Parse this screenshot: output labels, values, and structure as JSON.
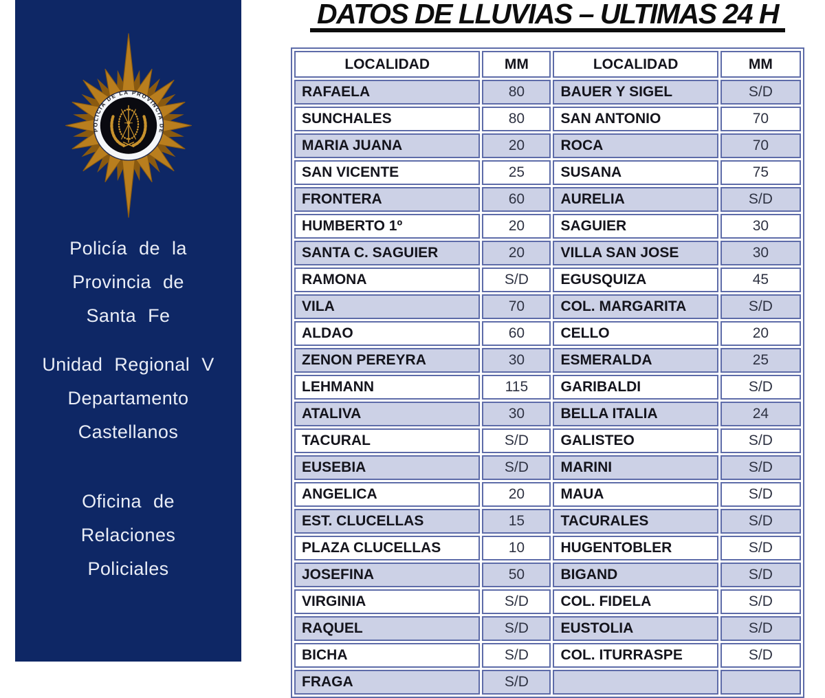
{
  "title": "DATOS DE LLUVIAS – ULTIMAS 24 H",
  "sidebar": {
    "emblem_text": "POLICIA DE LA PROVINCIA DE SANTA FE",
    "org_lines": [
      "Policía de la",
      "Provincia de",
      "Santa Fe"
    ],
    "unit_lines": [
      "Unidad Regional V",
      "Departamento",
      "Castellanos"
    ],
    "office_lines": [
      "Oficina de",
      "Relaciones",
      "Policiales"
    ]
  },
  "table": {
    "headers": [
      "LOCALIDAD",
      "MM",
      "LOCALIDAD",
      "MM"
    ],
    "rows": [
      [
        "RAFAELA",
        "80",
        "BAUER Y SIGEL",
        "S/D"
      ],
      [
        "SUNCHALES",
        "80",
        "SAN ANTONIO",
        "70"
      ],
      [
        "MARIA JUANA",
        "20",
        "ROCA",
        "70"
      ],
      [
        "SAN VICENTE",
        "25",
        "SUSANA",
        "75"
      ],
      [
        "FRONTERA",
        "60",
        "AURELIA",
        "S/D"
      ],
      [
        "HUMBERTO 1º",
        "20",
        "SAGUIER",
        "30"
      ],
      [
        "SANTA C. SAGUIER",
        "20",
        "VILLA SAN JOSE",
        "30"
      ],
      [
        "RAMONA",
        "S/D",
        "EGUSQUIZA",
        "45"
      ],
      [
        "VILA",
        "70",
        "COL. MARGARITA",
        "S/D"
      ],
      [
        "ALDAO",
        "60",
        "CELLO",
        "20"
      ],
      [
        "ZENON PEREYRA",
        "30",
        "ESMERALDA",
        "25"
      ],
      [
        "LEHMANN",
        "115",
        "GARIBALDI",
        "S/D"
      ],
      [
        "ATALIVA",
        "30",
        "BELLA ITALIA",
        "24"
      ],
      [
        "TACURAL",
        "S/D",
        "GALISTEO",
        "S/D"
      ],
      [
        "EUSEBIA",
        "S/D",
        "MARINI",
        "S/D"
      ],
      [
        "ANGELICA",
        "20",
        "MAUA",
        "S/D"
      ],
      [
        "EST. CLUCELLAS",
        "15",
        "TACURALES",
        "S/D"
      ],
      [
        "PLAZA CLUCELLAS",
        "10",
        "HUGENTOBLER",
        "S/D"
      ],
      [
        "JOSEFINA",
        "50",
        "BIGAND",
        "S/D"
      ],
      [
        "VIRGINIA",
        "S/D",
        "COL. FIDELA",
        "S/D"
      ],
      [
        "RAQUEL",
        "S/D",
        "EUSTOLIA",
        "S/D"
      ],
      [
        "BICHA",
        "S/D",
        "COL. ITURRASPE",
        "S/D"
      ],
      [
        "FRAGA",
        "S/D",
        "",
        ""
      ]
    ]
  },
  "colors": {
    "navy": "#0e2765",
    "sidebarText": "#e9edf6",
    "border": "#5d6ba8",
    "rowShade": "#ccd1e6",
    "titleBlack": "#0d0d0d",
    "gold": "#b97e1e",
    "goldDark": "#8a5a10",
    "emblemBand": "#f4f6f9"
  }
}
